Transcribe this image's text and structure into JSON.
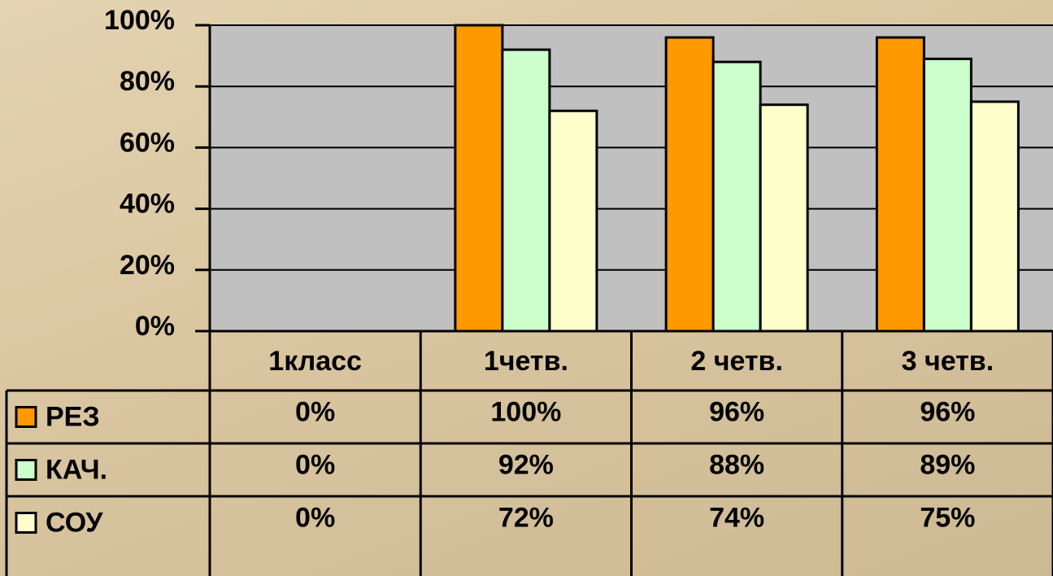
{
  "chart_data": {
    "type": "bar",
    "categories": [
      "1класс",
      "1четв.",
      "2 четв.",
      "3 четв."
    ],
    "series": [
      {
        "name": "РЕЗ",
        "color": "#ff9900",
        "values": [
          0,
          100,
          96,
          96
        ],
        "value_labels": [
          "0%",
          "100%",
          "96%",
          "96%"
        ]
      },
      {
        "name": "КАЧ.",
        "color": "#ccffcc",
        "values": [
          0,
          92,
          88,
          89
        ],
        "value_labels": [
          "0%",
          "92%",
          "88%",
          "89%"
        ]
      },
      {
        "name": "СОУ",
        "color": "#ffffcc",
        "values": [
          0,
          72,
          74,
          75
        ],
        "value_labels": [
          "0%",
          "72%",
          "74%",
          "75%"
        ]
      }
    ],
    "ylim": [
      0,
      100
    ],
    "yticks": [
      {
        "value": 0,
        "label": "0%"
      },
      {
        "value": 20,
        "label": "20%"
      },
      {
        "value": 40,
        "label": "40%"
      },
      {
        "value": 60,
        "label": "60%"
      },
      {
        "value": 80,
        "label": "80%"
      },
      {
        "value": 100,
        "label": "100%"
      }
    ],
    "grid": true
  }
}
